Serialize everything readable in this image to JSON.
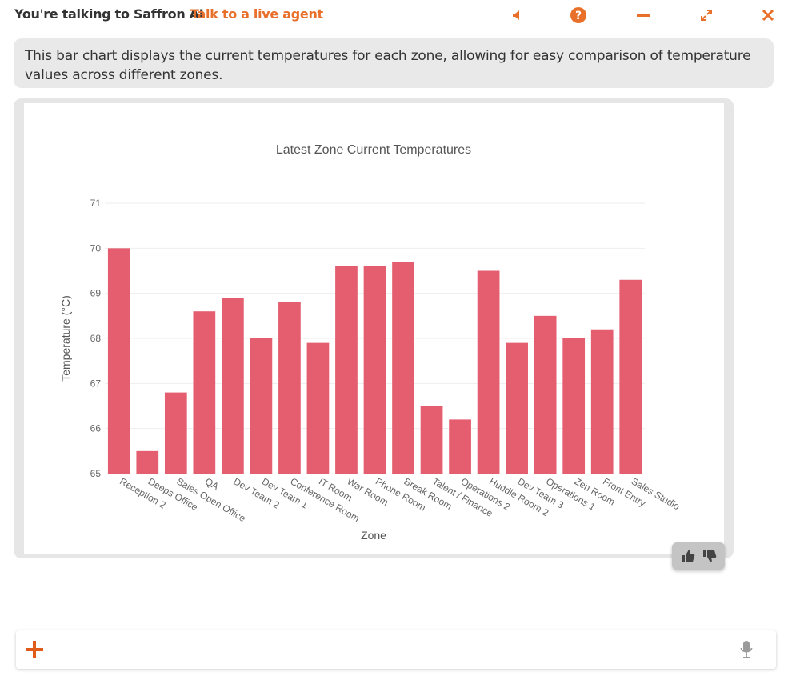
{
  "header": {
    "title": "You're talking to Saffron AI",
    "live_agent_link": "Talk to a live agent",
    "icons": [
      "speaker-icon",
      "help-icon",
      "minimize-icon",
      "expand-icon",
      "close-icon"
    ]
  },
  "colors": {
    "accent": "#e8702a",
    "bar": "#e45e70",
    "bubble_bg": "#e9e9e9"
  },
  "message": {
    "text": "This bar chart displays the current temperatures for each zone, allowing for easy comparison of temperature values across different zones."
  },
  "chart_data": {
    "type": "bar",
    "title": "Latest Zone Current Temperatures",
    "xlabel": "Zone",
    "ylabel": "Temperature (°C)",
    "ylim": [
      65,
      71
    ],
    "yticks": [
      65,
      66,
      67,
      68,
      69,
      70,
      71
    ],
    "grid": true,
    "categories": [
      "Reception 2",
      "Deeps Office",
      "Sales Open Office",
      "QA",
      "Dev Team 2",
      "Dev Team 1",
      "Conference Room",
      "IT Room",
      "War Room",
      "Phone Room",
      "Break Room",
      "Talent / Finance",
      "Operations 2",
      "Huddle Room 2",
      "Dev Team 3",
      "Operations 1",
      "Zen Room",
      "Front Entry",
      "Sales Studio"
    ],
    "values": [
      70.0,
      65.5,
      66.8,
      68.6,
      68.9,
      68.0,
      68.8,
      67.9,
      69.6,
      69.6,
      69.7,
      66.5,
      66.2,
      69.5,
      67.9,
      68.5,
      68.0,
      68.2,
      69.3
    ]
  },
  "feedback": {
    "icons": [
      "thumbs-up-icon",
      "thumbs-down-icon"
    ]
  },
  "input": {
    "placeholder": "",
    "value": ""
  }
}
